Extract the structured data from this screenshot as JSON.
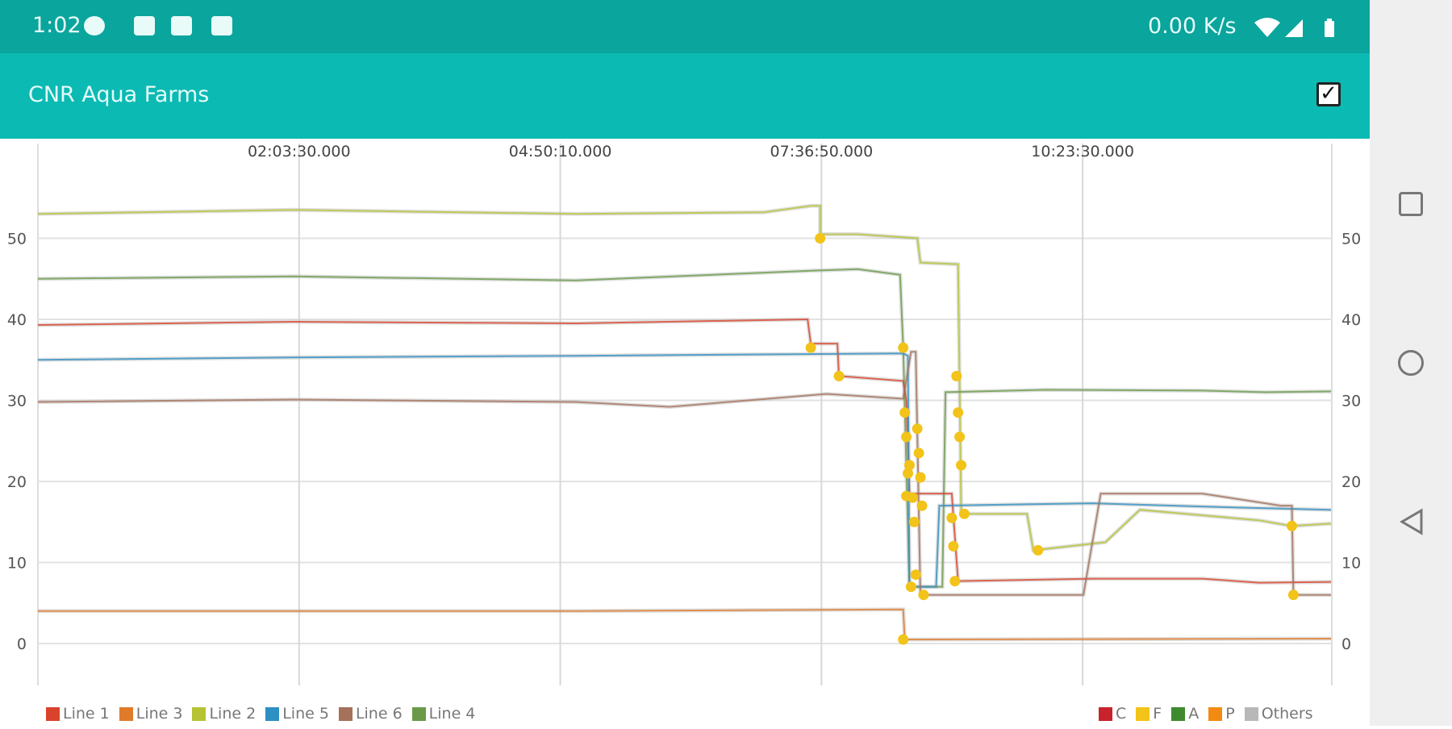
{
  "status_bar": {
    "time": "1:02",
    "net_rate": "0.00 K/s",
    "icons": [
      "chat-bubble-icon",
      "gmail-icon",
      "gmail-stack-icon",
      "image-icon",
      "wifi-icon",
      "signal-icon",
      "battery-icon"
    ]
  },
  "app_bar": {
    "title": "CNR Aqua Farms",
    "action_icon": "checkbox-checked-icon"
  },
  "nav_bar": {
    "icons": [
      "recents-square-icon",
      "home-circle-icon",
      "back-triangle-icon"
    ]
  },
  "legend_left": [
    {
      "label": "Line 1",
      "color": "#d9432c"
    },
    {
      "label": "Line 3",
      "color": "#e07b2a"
    },
    {
      "label": "Line 2",
      "color": "#b5c334"
    },
    {
      "label": "Line 5",
      "color": "#2e8fc2"
    },
    {
      "label": "Line 6",
      "color": "#a5715a"
    },
    {
      "label": "Line 4",
      "color": "#6a9a48"
    }
  ],
  "legend_right": [
    {
      "label": "C",
      "color": "#c8232c"
    },
    {
      "label": "F",
      "color": "#f2c318"
    },
    {
      "label": "A",
      "color": "#3f8a2e"
    },
    {
      "label": "P",
      "color": "#f38b12"
    },
    {
      "label": "Others",
      "color": "#b8b8b8"
    }
  ],
  "chart_data": {
    "type": "line",
    "x_range": [
      "23:16:50",
      "13:02:30"
    ],
    "x_ticks": [
      "02:03:30.000",
      "04:50:10.000",
      "07:36:50.000",
      "10:23:30.000"
    ],
    "y_ticks": [
      0,
      10,
      20,
      30,
      40,
      50
    ],
    "y_range": [
      -5,
      59
    ],
    "grid": true,
    "legend": "bottom",
    "series": [
      {
        "name": "Line 2",
        "color": "#b5c334",
        "points": [
          [
            "23:16:50",
            53
          ],
          [
            "02:00",
            53.5
          ],
          [
            "05:00",
            53
          ],
          [
            "07:00",
            53.2
          ],
          [
            "07:30",
            54
          ],
          [
            "07:36",
            54
          ],
          [
            "07:36",
            50.5
          ],
          [
            "08:00",
            50.5
          ],
          [
            "08:38",
            50
          ],
          [
            "08:40",
            47
          ],
          [
            "09:04",
            46.8
          ],
          [
            "09:06",
            16
          ],
          [
            "09:48",
            16
          ],
          [
            "09:52",
            11.5
          ],
          [
            "10:38",
            12.5
          ],
          [
            "11:00",
            16.5
          ],
          [
            "12:16",
            15.2
          ],
          [
            "12:37",
            14.5
          ],
          [
            "13:02",
            14.8
          ]
        ]
      },
      {
        "name": "Line 4",
        "color": "#6a9a48",
        "points": [
          [
            "23:16:50",
            45
          ],
          [
            "02:00",
            45.3
          ],
          [
            "05:00",
            44.8
          ],
          [
            "07:30",
            46
          ],
          [
            "08:00",
            46.2
          ],
          [
            "08:27",
            45.5
          ],
          [
            "08:29",
            36.5
          ],
          [
            "08:33",
            7
          ],
          [
            "08:54",
            7
          ],
          [
            "08:56",
            31
          ],
          [
            "10:00",
            31.3
          ],
          [
            "11:40",
            31.2
          ],
          [
            "12:20",
            31
          ],
          [
            "13:02",
            31.1
          ]
        ]
      },
      {
        "name": "Line 1",
        "color": "#d9432c",
        "points": [
          [
            "23:16:50",
            39.3
          ],
          [
            "02:00",
            39.7
          ],
          [
            "05:00",
            39.5
          ],
          [
            "07:28",
            40
          ],
          [
            "07:30",
            37
          ],
          [
            "07:47",
            37
          ],
          [
            "07:48",
            33
          ],
          [
            "08:29",
            32.4
          ],
          [
            "08:31",
            30
          ],
          [
            "08:33",
            18.5
          ],
          [
            "09:00",
            18.5
          ],
          [
            "09:04",
            7.7
          ],
          [
            "10:30",
            8
          ],
          [
            "11:40",
            8
          ],
          [
            "12:16",
            7.5
          ],
          [
            "13:02",
            7.6
          ]
        ]
      },
      {
        "name": "Line 5",
        "color": "#2e8fc2",
        "points": [
          [
            "23:16:50",
            35
          ],
          [
            "02:00",
            35.3
          ],
          [
            "05:00",
            35.5
          ],
          [
            "08:29",
            35.8
          ],
          [
            "08:32",
            35.5
          ],
          [
            "08:33",
            7
          ],
          [
            "08:50",
            7
          ],
          [
            "08:52",
            17
          ],
          [
            "10:30",
            17.3
          ],
          [
            "12:00",
            16.8
          ],
          [
            "13:02",
            16.5
          ]
        ]
      },
      {
        "name": "Line 6",
        "color": "#a5715a",
        "points": [
          [
            "23:16:50",
            29.8
          ],
          [
            "02:00",
            30.1
          ],
          [
            "05:00",
            29.8
          ],
          [
            "06:00",
            29.2
          ],
          [
            "07:40",
            30.8
          ],
          [
            "08:29",
            30.2
          ],
          [
            "08:34",
            36
          ],
          [
            "08:37",
            36
          ],
          [
            "08:40",
            6
          ],
          [
            "10:24",
            6
          ],
          [
            "10:35",
            18.5
          ],
          [
            "11:40",
            18.5
          ],
          [
            "12:30",
            17
          ],
          [
            "12:37",
            17
          ],
          [
            "12:38",
            6
          ],
          [
            "13:02",
            6
          ]
        ]
      },
      {
        "name": "Line 3",
        "color": "#e07b2a",
        "points": [
          [
            "23:16:50",
            4
          ],
          [
            "05:00",
            4
          ],
          [
            "08:29",
            4.2
          ],
          [
            "08:30",
            0.5
          ],
          [
            "13:02",
            0.6
          ]
        ]
      }
    ],
    "markers": {
      "color": "#f2c318",
      "points": [
        [
          "07:36",
          50
        ],
        [
          "07:30",
          36.5
        ],
        [
          "07:48",
          33
        ],
        [
          "08:29",
          36.5
        ],
        [
          "08:30",
          28.5
        ],
        [
          "08:31",
          25.5
        ],
        [
          "08:32",
          21
        ],
        [
          "08:33",
          22
        ],
        [
          "08:31",
          18.2
        ],
        [
          "08:34",
          7
        ],
        [
          "08:35",
          18
        ],
        [
          "08:36",
          15
        ],
        [
          "08:37",
          8.5
        ],
        [
          "08:38",
          26.5
        ],
        [
          "08:39",
          23.5
        ],
        [
          "08:40",
          20.5
        ],
        [
          "08:41",
          17
        ],
        [
          "08:42",
          6
        ],
        [
          "09:03",
          33
        ],
        [
          "09:04",
          28.5
        ],
        [
          "09:05",
          25.5
        ],
        [
          "09:06",
          22
        ],
        [
          "09:08",
          16
        ],
        [
          "09:00",
          15.5
        ],
        [
          "09:01",
          12
        ],
        [
          "09:02",
          7.7
        ],
        [
          "09:55",
          11.5
        ],
        [
          "12:37",
          14.5
        ],
        [
          "12:38",
          6
        ],
        [
          "08:29",
          0.5
        ]
      ]
    }
  }
}
